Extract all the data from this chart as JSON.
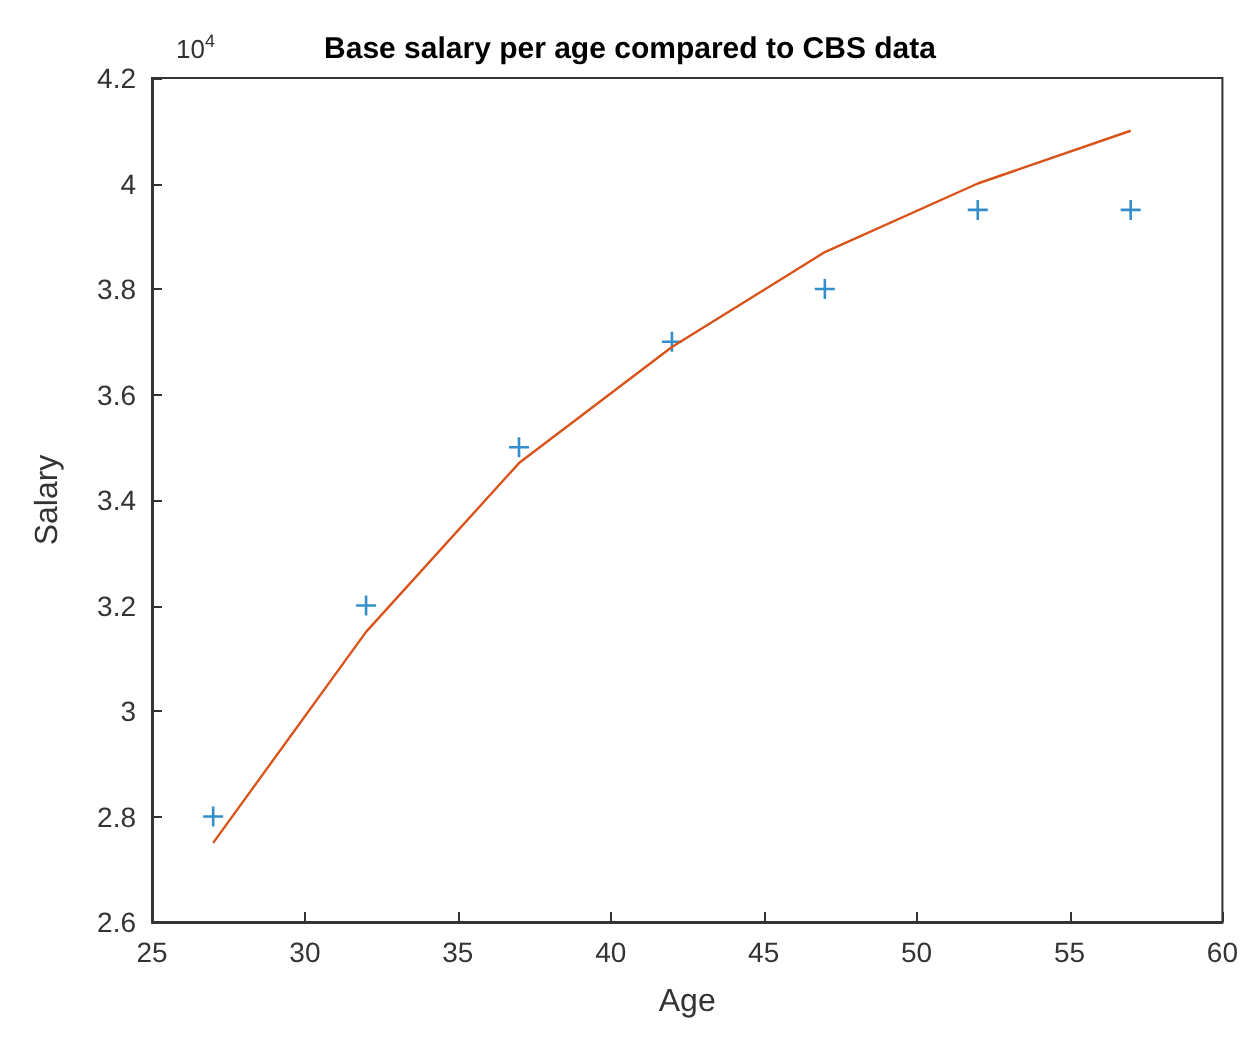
{
  "chart_data": {
    "type": "scatter",
    "title": "Base salary per age compared to CBS data",
    "xlabel": "Age",
    "ylabel": "Salary",
    "annotations": [
      "10$^{4}$"
    ],
    "xlim": [
      25,
      60
    ],
    "xticks": [
      25,
      30,
      35,
      40,
      45,
      50,
      55,
      60
    ],
    "ylim": [
      2.6,
      4.2
    ],
    "yticks": [
      2.6,
      2.8,
      3,
      3.2,
      3.4,
      3.6,
      3.8,
      4,
      4.2
    ],
    "grid": false,
    "series": [
      {
        "marker": "cross",
        "color": "#0072bd",
        "x": [
          27,
          32,
          37,
          42,
          47,
          52,
          57
        ],
        "values": [
          2.8,
          3.2,
          3.5,
          3.7,
          3.8,
          3.95,
          3.95
        ]
      },
      {
        "type": "line",
        "marker": "none",
        "line_style": "solid",
        "color": "#d95319",
        "x": [
          27,
          32,
          37,
          42,
          47,
          52,
          57
        ],
        "values": [
          2.75,
          3.15,
          3.47,
          3.69,
          3.87,
          4.0,
          4.1
        ]
      }
    ]
  }
}
